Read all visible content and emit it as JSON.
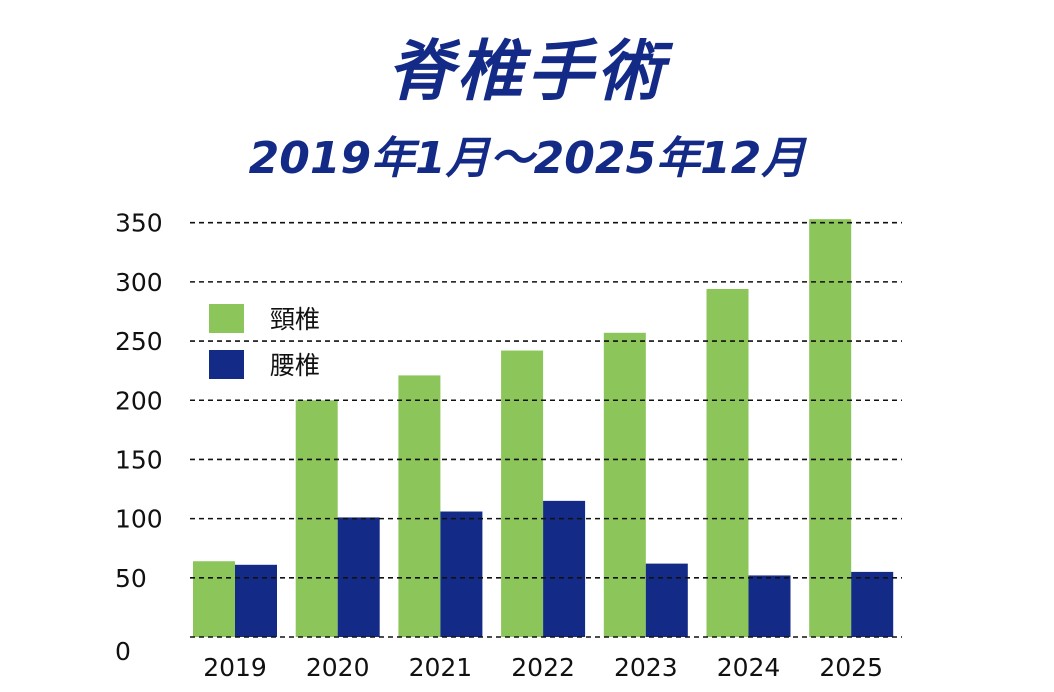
{
  "chart_data": {
    "type": "bar",
    "title": "脊椎手術",
    "subtitle": "2019年1月～2025年12月",
    "xlabel": "",
    "ylabel": "",
    "ylim": [
      0,
      350
    ],
    "yticks": [
      0,
      50,
      100,
      150,
      200,
      250,
      300,
      350
    ],
    "grid": true,
    "legend_position": "top-left",
    "categories": [
      "2019",
      "2020",
      "2021",
      "2022",
      "2023",
      "2024",
      "2025"
    ],
    "series": [
      {
        "name": "頸椎",
        "color": "#8cc55a",
        "values": [
          64,
          200,
          221,
          242,
          257,
          294,
          353
        ]
      },
      {
        "name": "腰椎",
        "color": "#132a87",
        "values": [
          61,
          101,
          106,
          115,
          62,
          52,
          55
        ]
      }
    ]
  }
}
